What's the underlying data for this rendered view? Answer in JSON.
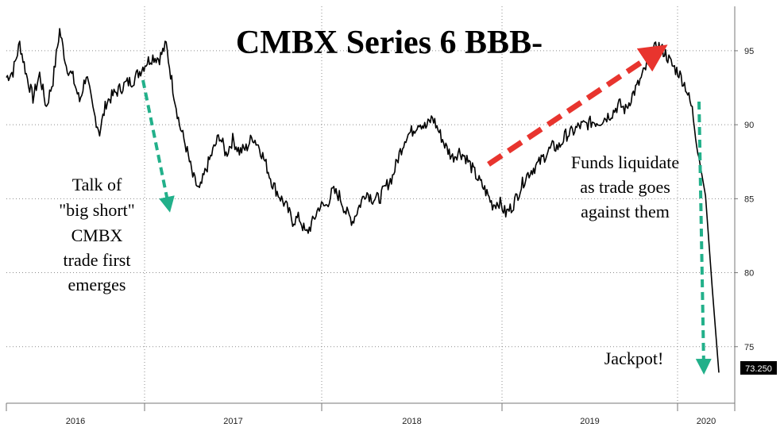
{
  "chart_data": {
    "type": "line",
    "title": "CMBX Series 6 BBB-",
    "xlabel": "",
    "ylabel": "",
    "ylim": [
      71.5,
      98
    ],
    "yticks": [
      75,
      80,
      85,
      90,
      95
    ],
    "xticks": [
      "2016",
      "2017",
      "2018",
      "2019",
      "2020"
    ],
    "last_value_label": "73.250",
    "grid": true,
    "series": [
      {
        "values": [
          93.2,
          93.6,
          95.5,
          93.4,
          91.8,
          93.4,
          91.2,
          93.0,
          96.4,
          94.0,
          93.2,
          91.6,
          93.4,
          91.0,
          89.5,
          91.5,
          92.0,
          92.4,
          92.8,
          93.0,
          93.6,
          94.2,
          94.6,
          94.5,
          95.4,
          92.5,
          90.0,
          88.5,
          86.5,
          85.5,
          87.0,
          88.2,
          89.3,
          88.0,
          89.0,
          88.2,
          88.4,
          89.2,
          88.5,
          87.3,
          86.0,
          85.2,
          84.5,
          83.5,
          83.7,
          82.6,
          83.4,
          84.5,
          84.5,
          85.5,
          85.2,
          84.1,
          83.5,
          84.5,
          85.5,
          85.0,
          85.0,
          85.8,
          86.5,
          88.0,
          89.2,
          89.6,
          90.2,
          89.8,
          90.5,
          89.5,
          88.5,
          87.8,
          88.2,
          87.8,
          87.0,
          86.2,
          85.5,
          84.6,
          84.8,
          84.0,
          84.5,
          85.5,
          86.5,
          87.0,
          87.4,
          88.0,
          88.5,
          88.5,
          89.3,
          89.5,
          89.9,
          90.0,
          90.2,
          90.2,
          90.5,
          90.8,
          91.4,
          91.0,
          92.0,
          92.8,
          93.8,
          95.0,
          95.3,
          94.8,
          94.0,
          93.5,
          92.6,
          91.0,
          87.8,
          85.2,
          79.0,
          73.25
        ]
      }
    ],
    "annotations": [
      {
        "id": "talk",
        "lines": [
          "Talk of",
          "\"big short\"",
          "CMBX",
          "trade first",
          "emerges"
        ]
      },
      {
        "id": "funds",
        "lines": [
          "Funds liquidate",
          "as trade goes",
          "against them"
        ]
      },
      {
        "id": "jackpot",
        "lines": [
          "Jackpot!"
        ]
      }
    ],
    "arrow_colors": {
      "green": "#22b08a",
      "red": "#e8342e"
    }
  }
}
